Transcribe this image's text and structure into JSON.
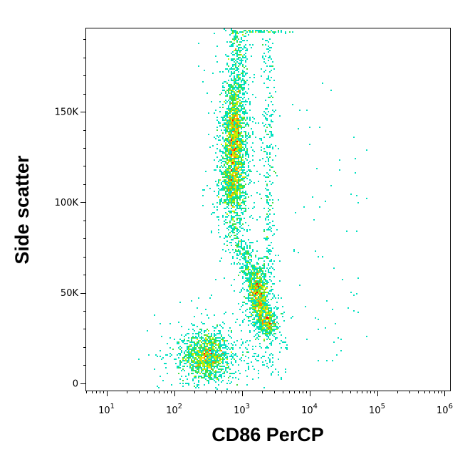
{
  "chart_data": {
    "type": "scatter",
    "style": "density flow-cytometry dot plot (blue-cyan-green-yellow-red density coloring)",
    "xlabel": "CD86 PerCP",
    "ylabel": "Side scatter",
    "x_scale": "log",
    "xlim": [
      5,
      1200000
    ],
    "ylim": [
      -4000,
      196000
    ],
    "x_ticks": [
      {
        "base": "10",
        "exp": "1",
        "value": 10
      },
      {
        "base": "10",
        "exp": "2",
        "value": 100
      },
      {
        "base": "10",
        "exp": "3",
        "value": 1000
      },
      {
        "base": "10",
        "exp": "4",
        "value": 10000
      },
      {
        "base": "10",
        "exp": "5",
        "value": 100000
      },
      {
        "base": "10",
        "exp": "6",
        "value": 1000000
      }
    ],
    "y_ticks": [
      {
        "label": "0",
        "value": 0
      },
      {
        "label": "50K",
        "value": 50000
      },
      {
        "label": "100K",
        "value": 100000
      },
      {
        "label": "150K",
        "value": 150000
      }
    ],
    "density_colors": [
      "#0000ff",
      "#00aaff",
      "#00e0c0",
      "#40e040",
      "#c0f000",
      "#ffd700",
      "#ff8000",
      "#ff0000"
    ],
    "populations": [
      {
        "x": 300,
        "y": 15000,
        "sx_dec": 0.17,
        "sy": 7000,
        "n": 1100,
        "peak": 1.0
      },
      {
        "x": 780,
        "y": 138000,
        "sx_dec": 0.08,
        "sy": 15000,
        "n": 1400,
        "peak": 0.75
      },
      {
        "x": 750,
        "y": 108000,
        "sx_dec": 0.09,
        "sy": 10000,
        "n": 700,
        "peak": 0.6
      },
      {
        "x": 1750,
        "y": 50000,
        "sx_dec": 0.08,
        "sy": 7500,
        "n": 550,
        "peak": 0.55
      },
      {
        "x": 2400,
        "y": 34000,
        "sx_dec": 0.07,
        "sy": 5000,
        "n": 350,
        "peak": 0.5
      }
    ],
    "grid": false,
    "legend": "none"
  }
}
